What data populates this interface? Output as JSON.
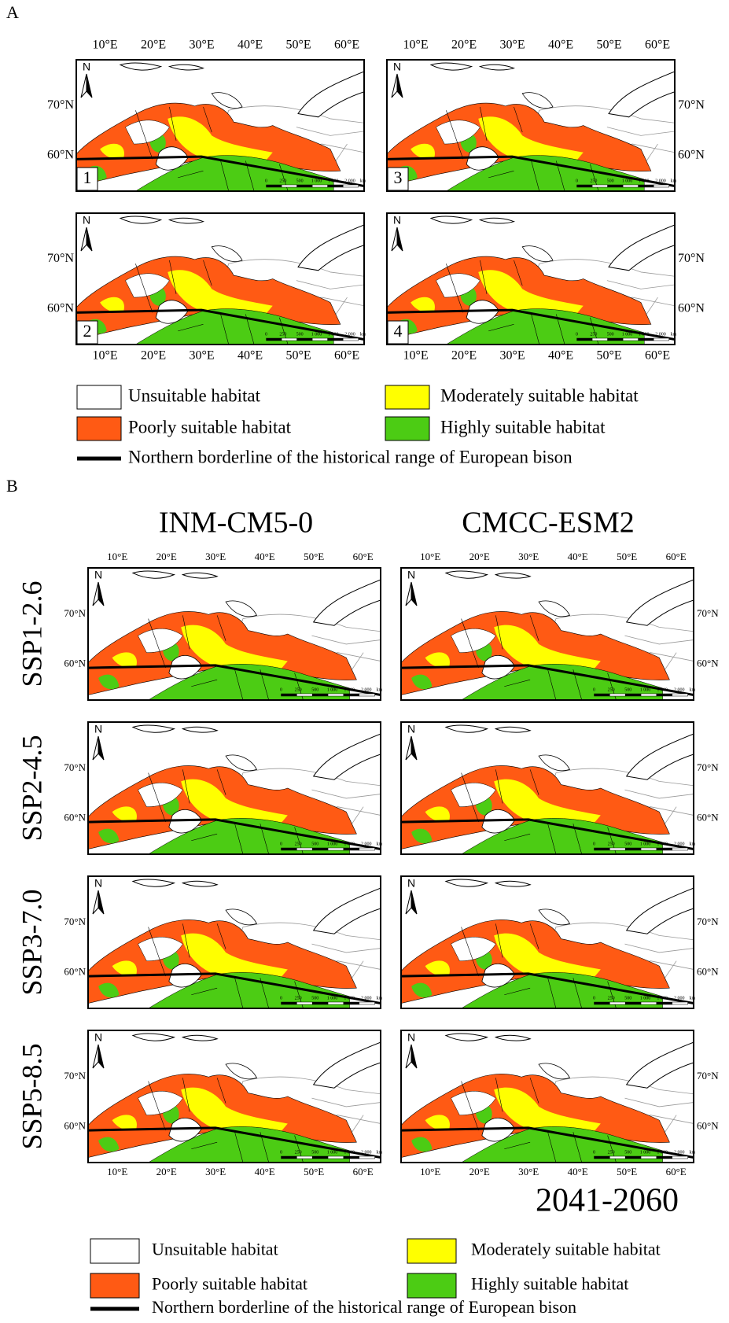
{
  "map_labels": {
    "lon_labels": [
      "10°E",
      "20°E",
      "30°E",
      "40°E",
      "50°E",
      "60°E"
    ],
    "lat_labels": [
      "70°N",
      "60°N"
    ],
    "north": "N",
    "scale_labels": [
      "0",
      "250",
      "500",
      "1 000",
      "1 500",
      "2 000",
      "km"
    ]
  },
  "legend": {
    "items": [
      "Unsuitable habitat",
      "Poorly suitable habitat",
      "Moderately suitable habitat",
      "Highly suitable habitat"
    ],
    "borderline": "Northern borderline of the historical range of European bison"
  },
  "panel_a": {
    "label": "A",
    "map_numbers": [
      "1",
      "2",
      "3",
      "4"
    ]
  },
  "panel_b": {
    "label": "B",
    "models": [
      "INM-CM5-0",
      "CMCC-ESM2"
    ],
    "scenarios": [
      "SSP1-2.6",
      "SSP2-4.5",
      "SSP3-7.0",
      "SSP5-8.5"
    ],
    "period": "2041-2060"
  }
}
